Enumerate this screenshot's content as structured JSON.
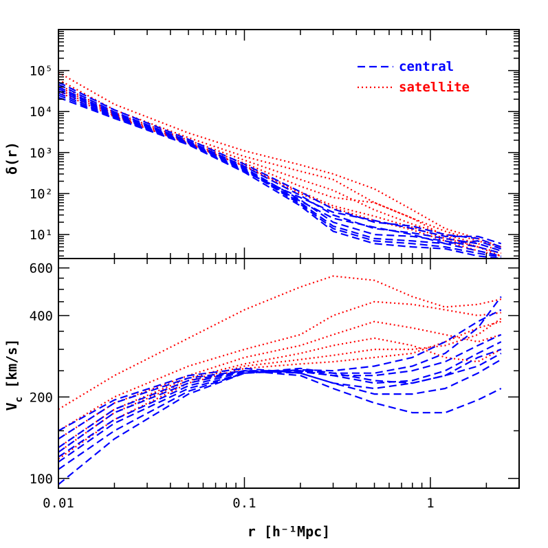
{
  "chart_data": [
    {
      "panel": "top",
      "type": "line",
      "xscale": "log",
      "yscale": "log",
      "xlim": [
        0.01,
        3.0
      ],
      "ylim": [
        2.6,
        1000000
      ],
      "ylabel": "δ(r)",
      "yticks": [
        10,
        100,
        1000,
        10000,
        100000
      ],
      "ytick_labels": [
        "10¹",
        "10²",
        "10³",
        "10⁴",
        "10⁵"
      ],
      "legend": {
        "placement": "top-right",
        "entries": [
          {
            "label": "central",
            "color": "#0000ff",
            "style": "dashed"
          },
          {
            "label": "satellite",
            "color": "#ff0000",
            "style": "dotted"
          }
        ]
      },
      "series": [
        {
          "group": "central",
          "style": "dashed",
          "color": "#0000ff",
          "x": [
            0.01,
            0.02,
            0.05,
            0.1,
            0.2,
            0.3,
            0.5,
            0.8,
            1.2,
            1.8,
            2.4
          ],
          "y": [
            52000,
            11000,
            2100,
            520,
            110,
            42,
            20,
            16,
            10,
            8,
            5
          ]
        },
        {
          "group": "central",
          "style": "dashed",
          "color": "#0000ff",
          "x": [
            0.01,
            0.02,
            0.05,
            0.1,
            0.2,
            0.3,
            0.5,
            0.8,
            1.2,
            1.8,
            2.4
          ],
          "y": [
            46000,
            9800,
            1900,
            460,
            90,
            30,
            14,
            11,
            8,
            6,
            4
          ]
        },
        {
          "group": "central",
          "style": "dashed",
          "color": "#0000ff",
          "x": [
            0.01,
            0.02,
            0.05,
            0.1,
            0.2,
            0.3,
            0.5,
            0.8,
            1.2,
            1.8,
            2.4
          ],
          "y": [
            40000,
            9000,
            1800,
            420,
            70,
            20,
            10,
            9,
            7,
            5,
            3.5
          ]
        },
        {
          "group": "central",
          "style": "dashed",
          "color": "#0000ff",
          "x": [
            0.01,
            0.02,
            0.05,
            0.1,
            0.2,
            0.3,
            0.5,
            0.8,
            1.2,
            1.8,
            2.4
          ],
          "y": [
            36000,
            8500,
            1750,
            400,
            60,
            16,
            8,
            7,
            6,
            4,
            3
          ]
        },
        {
          "group": "central",
          "style": "dashed",
          "color": "#0000ff",
          "x": [
            0.01,
            0.02,
            0.05,
            0.1,
            0.2,
            0.3,
            0.5,
            0.8,
            1.2,
            1.8,
            2.4
          ],
          "y": [
            32000,
            8000,
            1700,
            380,
            55,
            14,
            7,
            6,
            5,
            3.5,
            2.8
          ]
        },
        {
          "group": "central",
          "style": "dashed",
          "color": "#0000ff",
          "x": [
            0.01,
            0.02,
            0.05,
            0.1,
            0.2,
            0.3,
            0.5,
            0.8,
            1.2,
            1.8,
            2.4
          ],
          "y": [
            28000,
            7500,
            1650,
            360,
            65,
            25,
            15,
            10,
            6,
            7,
            4.5
          ]
        },
        {
          "group": "central",
          "style": "dashed",
          "color": "#0000ff",
          "x": [
            0.01,
            0.02,
            0.05,
            0.1,
            0.2,
            0.3,
            0.5,
            0.8,
            1.2,
            1.8,
            2.4
          ],
          "y": [
            25000,
            7000,
            1600,
            340,
            80,
            35,
            22,
            14,
            9,
            9,
            6
          ]
        },
        {
          "group": "central",
          "style": "dashed",
          "color": "#0000ff",
          "x": [
            0.01,
            0.02,
            0.05,
            0.1,
            0.2,
            0.3,
            0.5,
            0.8,
            1.2,
            1.8,
            2.4
          ],
          "y": [
            22000,
            6800,
            1550,
            330,
            50,
            12,
            6,
            5,
            4.5,
            3,
            2.6
          ]
        },
        {
          "group": "satellite",
          "style": "dotted",
          "color": "#ff0000",
          "x": [
            0.01,
            0.02,
            0.05,
            0.1,
            0.2,
            0.3,
            0.5,
            0.8,
            1.2,
            1.8,
            2.4
          ],
          "y": [
            90000,
            15000,
            3000,
            1100,
            500,
            300,
            130,
            40,
            14,
            8,
            5
          ]
        },
        {
          "group": "satellite",
          "style": "dotted",
          "color": "#ff0000",
          "x": [
            0.01,
            0.02,
            0.05,
            0.1,
            0.2,
            0.3,
            0.5,
            0.8,
            1.2,
            1.8,
            2.4
          ],
          "y": [
            60000,
            11000,
            2300,
            800,
            350,
            220,
            60,
            25,
            12,
            7,
            5
          ]
        },
        {
          "group": "satellite",
          "style": "dotted",
          "color": "#ff0000",
          "x": [
            0.01,
            0.02,
            0.05,
            0.1,
            0.2,
            0.3,
            0.5,
            0.8,
            1.2,
            1.8,
            2.4
          ],
          "y": [
            45000,
            9500,
            2000,
            650,
            220,
            120,
            40,
            18,
            10,
            6,
            4
          ]
        },
        {
          "group": "satellite",
          "style": "dotted",
          "color": "#ff0000",
          "x": [
            0.01,
            0.02,
            0.05,
            0.1,
            0.2,
            0.3,
            0.5,
            0.8,
            1.2,
            1.8,
            2.4
          ],
          "y": [
            40000,
            8800,
            1800,
            550,
            150,
            80,
            60,
            25,
            9,
            5,
            3.5
          ]
        },
        {
          "group": "satellite",
          "style": "dotted",
          "color": "#ff0000",
          "x": [
            0.01,
            0.02,
            0.05,
            0.1,
            0.2,
            0.3,
            0.5,
            0.8,
            1.2,
            1.8,
            2.4
          ],
          "y": [
            35000,
            8000,
            1700,
            480,
            110,
            50,
            28,
            15,
            8,
            5,
            3
          ]
        },
        {
          "group": "satellite",
          "style": "dotted",
          "color": "#ff0000",
          "x": [
            0.01,
            0.02,
            0.05,
            0.1,
            0.2,
            0.3,
            0.5,
            0.8,
            1.2,
            1.8,
            2.4
          ],
          "y": [
            30000,
            7500,
            1650,
            460,
            100,
            45,
            22,
            13,
            7,
            4,
            3
          ]
        }
      ]
    },
    {
      "panel": "bottom",
      "type": "line",
      "xscale": "log",
      "yscale": "log",
      "xlim": [
        0.01,
        3.0
      ],
      "ylim": [
        92,
        650
      ],
      "xlabel": "r [h⁻¹Mpc]",
      "ylabel": "V",
      "ylabel_sub": "c",
      "ylabel_unit": " [km/s]",
      "xticks": [
        0.01,
        0.1,
        1
      ],
      "xtick_labels": [
        "0.01",
        "0.1",
        "1"
      ],
      "yticks": [
        100,
        200,
        400,
        600
      ],
      "ytick_labels": [
        "100",
        "200",
        "400",
        "600"
      ],
      "series": [
        {
          "group": "central",
          "style": "dashed",
          "color": "#0000ff",
          "x": [
            0.01,
            0.02,
            0.05,
            0.1,
            0.2,
            0.3,
            0.5,
            0.8,
            1.2,
            1.8,
            2.4
          ],
          "y": [
            150,
            195,
            240,
            255,
            245,
            225,
            205,
            205,
            215,
            245,
            275
          ]
        },
        {
          "group": "central",
          "style": "dashed",
          "color": "#0000ff",
          "x": [
            0.01,
            0.02,
            0.05,
            0.1,
            0.2,
            0.3,
            0.5,
            0.8,
            1.2,
            1.8,
            2.4
          ],
          "y": [
            140,
            190,
            235,
            250,
            240,
            215,
            190,
            175,
            175,
            195,
            215
          ]
        },
        {
          "group": "central",
          "style": "dashed",
          "color": "#0000ff",
          "x": [
            0.01,
            0.02,
            0.05,
            0.1,
            0.2,
            0.3,
            0.5,
            0.8,
            1.2,
            1.8,
            2.4
          ],
          "y": [
            130,
            180,
            230,
            250,
            245,
            225,
            215,
            225,
            240,
            260,
            290
          ]
        },
        {
          "group": "central",
          "style": "dashed",
          "color": "#0000ff",
          "x": [
            0.01,
            0.02,
            0.05,
            0.1,
            0.2,
            0.3,
            0.5,
            0.8,
            1.2,
            1.8,
            2.4
          ],
          "y": [
            125,
            175,
            225,
            250,
            250,
            240,
            225,
            230,
            250,
            290,
            320
          ]
        },
        {
          "group": "central",
          "style": "dashed",
          "color": "#0000ff",
          "x": [
            0.01,
            0.02,
            0.05,
            0.1,
            0.2,
            0.3,
            0.5,
            0.8,
            1.2,
            1.8,
            2.4
          ],
          "y": [
            120,
            165,
            220,
            248,
            248,
            240,
            240,
            250,
            270,
            310,
            340
          ]
        },
        {
          "group": "central",
          "style": "dashed",
          "color": "#0000ff",
          "x": [
            0.01,
            0.02,
            0.05,
            0.1,
            0.2,
            0.3,
            0.5,
            0.8,
            1.2,
            1.8,
            2.4
          ],
          "y": [
            115,
            160,
            215,
            245,
            250,
            245,
            245,
            260,
            290,
            360,
            470
          ]
        },
        {
          "group": "central",
          "style": "dashed",
          "color": "#0000ff",
          "x": [
            0.01,
            0.02,
            0.05,
            0.1,
            0.2,
            0.3,
            0.5,
            0.8,
            1.2,
            1.8,
            2.4
          ],
          "y": [
            108,
            150,
            210,
            245,
            252,
            250,
            260,
            280,
            320,
            380,
            420
          ]
        },
        {
          "group": "central",
          "style": "dashed",
          "color": "#0000ff",
          "x": [
            0.01,
            0.02,
            0.05,
            0.1,
            0.2,
            0.3,
            0.5,
            0.8,
            1.2,
            1.8,
            2.4
          ],
          "y": [
            95,
            140,
            205,
            245,
            255,
            245,
            230,
            225,
            240,
            280,
            300
          ]
        },
        {
          "group": "satellite",
          "style": "dotted",
          "color": "#ff0000",
          "x": [
            0.01,
            0.02,
            0.05,
            0.1,
            0.2,
            0.3,
            0.5,
            0.8,
            1.2,
            1.8,
            2.4
          ],
          "y": [
            180,
            240,
            330,
            420,
            510,
            560,
            540,
            470,
            430,
            440,
            460
          ]
        },
        {
          "group": "satellite",
          "style": "dotted",
          "color": "#ff0000",
          "x": [
            0.01,
            0.02,
            0.05,
            0.1,
            0.2,
            0.3,
            0.5,
            0.8,
            1.2,
            1.8,
            2.4
          ],
          "y": [
            150,
            200,
            260,
            300,
            340,
            400,
            450,
            440,
            420,
            400,
            410
          ]
        },
        {
          "group": "satellite",
          "style": "dotted",
          "color": "#ff0000",
          "x": [
            0.01,
            0.02,
            0.05,
            0.1,
            0.2,
            0.3,
            0.5,
            0.8,
            1.2,
            1.8,
            2.4
          ],
          "y": [
            140,
            190,
            240,
            280,
            310,
            340,
            380,
            360,
            340,
            320,
            340
          ]
        },
        {
          "group": "satellite",
          "style": "dotted",
          "color": "#ff0000",
          "x": [
            0.01,
            0.02,
            0.05,
            0.1,
            0.2,
            0.3,
            0.5,
            0.8,
            1.2,
            1.8,
            2.4
          ],
          "y": [
            130,
            180,
            235,
            265,
            290,
            310,
            330,
            310,
            280,
            270,
            300
          ]
        },
        {
          "group": "satellite",
          "style": "dotted",
          "color": "#ff0000",
          "x": [
            0.01,
            0.02,
            0.05,
            0.1,
            0.2,
            0.3,
            0.5,
            0.8,
            1.2,
            1.8,
            2.4
          ],
          "y": [
            125,
            175,
            230,
            260,
            275,
            285,
            300,
            300,
            310,
            340,
            390
          ]
        },
        {
          "group": "satellite",
          "style": "dotted",
          "color": "#ff0000",
          "x": [
            0.01,
            0.02,
            0.05,
            0.1,
            0.2,
            0.3,
            0.5,
            0.8,
            1.2,
            1.8,
            2.4
          ],
          "y": [
            118,
            165,
            225,
            255,
            265,
            270,
            280,
            290,
            320,
            360,
            380
          ]
        }
      ]
    }
  ]
}
